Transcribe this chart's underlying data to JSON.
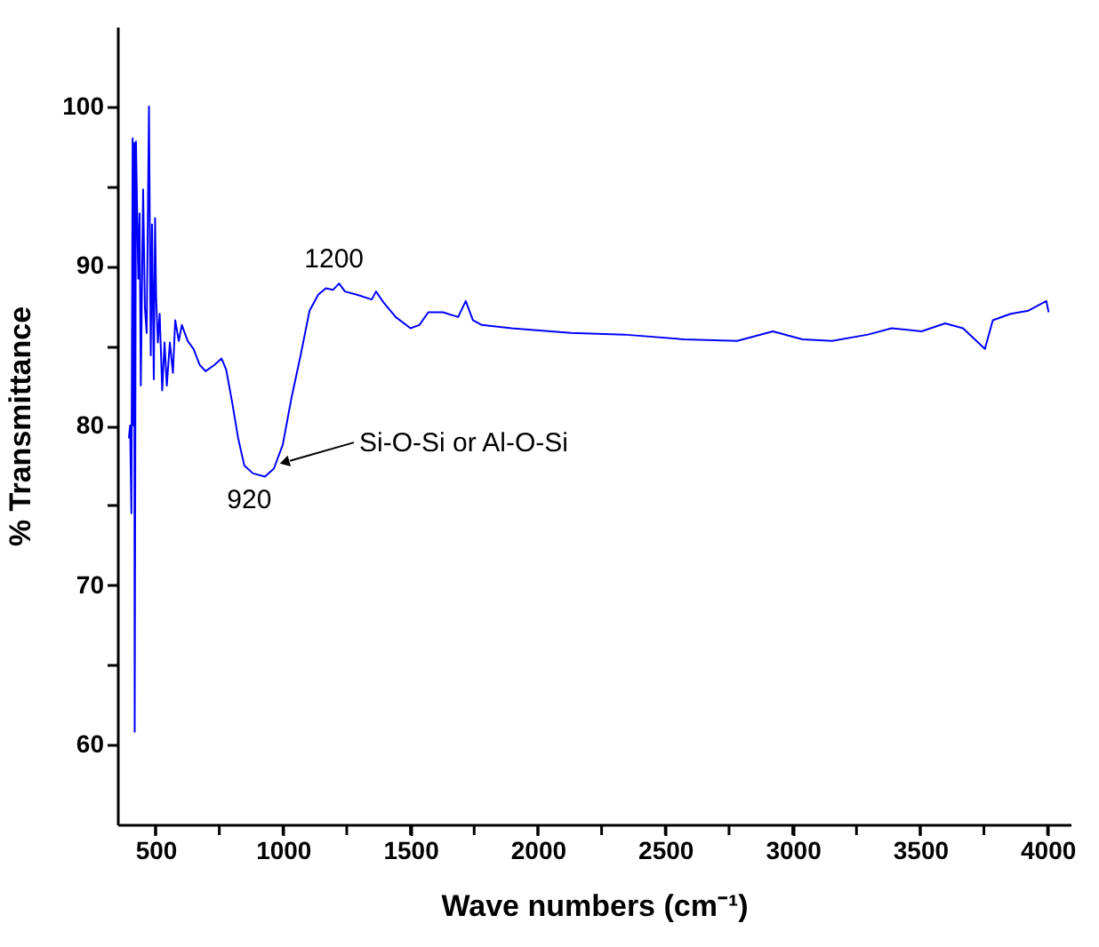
{
  "chart_data": {
    "type": "line",
    "xlabel": "Wave numbers (cm⁻¹)",
    "ylabel": "% Transmittance",
    "xlim": [
      350,
      4090
    ],
    "ylim": [
      55,
      105
    ],
    "xticks": [
      500,
      {
        "value": 750,
        "label": null
      },
      1000,
      {
        "value": 1250,
        "label": null
      },
      1500,
      {
        "value": 1750,
        "label": null
      },
      2000,
      {
        "value": 2250,
        "label": null
      },
      2500,
      {
        "value": 2750,
        "label": null
      },
      3000,
      {
        "value": 3250,
        "label": null
      },
      3500,
      {
        "value": 3750,
        "label": null
      },
      4000
    ],
    "yticks": [
      60,
      {
        "value": 65,
        "label": null
      },
      70,
      {
        "value": 75,
        "label": null
      },
      80,
      {
        "value": 85,
        "label": null
      },
      90,
      {
        "value": 95,
        "label": null
      },
      100
    ],
    "grid": false,
    "marker": "none",
    "line_style": "solid",
    "annotations": [
      {
        "text": "1200",
        "x": 1200,
        "y": 88.9
      },
      {
        "text": "920",
        "x": 920,
        "y": 76.8
      },
      {
        "text": "Si-O-Si or Al-O-Si",
        "x": 985,
        "y": 77.6
      }
    ],
    "series": [
      {
        "color": "#0000ff",
        "x": [
          395,
          400,
          405,
          410,
          413,
          416,
          418,
          423,
          432,
          437,
          442,
          451,
          458,
          465,
          474,
          481,
          486,
          493,
          498,
          502,
          509,
          516,
          526,
          535,
          544,
          556,
          568,
          577,
          591,
          603,
          626,
          649,
          673,
          696,
          731,
          759,
          777,
          801,
          824,
          848,
          882,
          929,
          964,
          999,
          1034,
          1069,
          1104,
          1138,
          1168,
          1196,
          1220,
          1243,
          1290,
          1348,
          1365,
          1395,
          1442,
          1500,
          1535,
          1570,
          1628,
          1687,
          1717,
          1745,
          1780,
          1896,
          2129,
          2339,
          2572,
          2782,
          2922,
          3038,
          3155,
          3295,
          3388,
          3505,
          3598,
          3668,
          3754,
          3785,
          3855,
          3925,
          3995,
          4004
        ],
        "values": [
          79.2,
          80,
          74.5,
          98,
          80,
          97.7,
          60.8,
          97.8,
          89.2,
          93.3,
          82.5,
          94.8,
          87.4,
          85.8,
          100,
          84.4,
          92.6,
          82.9,
          93,
          88.1,
          85.2,
          87,
          82.2,
          85.2,
          82.5,
          85.2,
          83.3,
          86.6,
          85.3,
          86.3,
          85.3,
          84.8,
          83.8,
          83.4,
          83.8,
          84.2,
          83.5,
          81.4,
          79.2,
          77.5,
          77,
          76.8,
          77.3,
          78.8,
          81.8,
          84.4,
          87.2,
          88.2,
          88.6,
          88.5,
          88.9,
          88.4,
          88.2,
          87.9,
          88.4,
          87.7,
          86.8,
          86.1,
          86.3,
          87.1,
          87.1,
          86.8,
          87.8,
          86.6,
          86.3,
          86.1,
          85.8,
          85.7,
          85.4,
          85.3,
          85.9,
          85.4,
          85.3,
          85.7,
          86.1,
          85.9,
          86.4,
          86.1,
          84.8,
          86.6,
          87,
          87.2,
          87.8,
          87.1
        ]
      }
    ]
  }
}
